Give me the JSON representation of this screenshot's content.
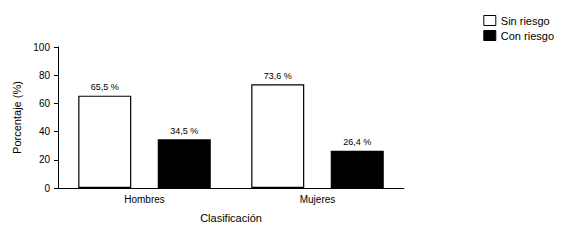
{
  "chart_data": {
    "type": "bar",
    "x_label": "Clasificación",
    "y_label": "Porcentaje (%)",
    "categories": [
      "Hombres",
      "Mujeres"
    ],
    "series": [
      {
        "name": "Sin riesgo",
        "color": "#ffffff",
        "values": [
          65.5,
          73.6
        ],
        "value_labels": [
          "65,5 %",
          "73,6 %"
        ]
      },
      {
        "name": "Con riesgo",
        "color": "#000000",
        "values": [
          34.5,
          26.4
        ],
        "value_labels": [
          "34,5 %",
          "26,4 %"
        ]
      }
    ],
    "ylim": [
      0,
      100
    ],
    "yticks": [
      0,
      20,
      40,
      60,
      80,
      100
    ],
    "grid": false,
    "legend": "top-right",
    "data_labels": true
  }
}
